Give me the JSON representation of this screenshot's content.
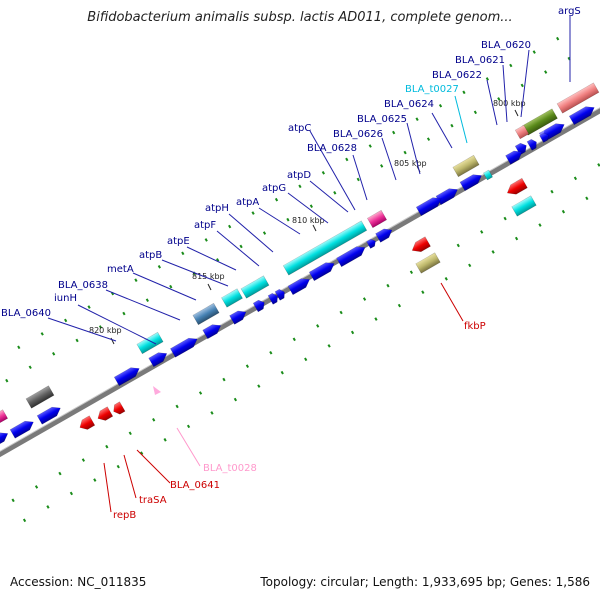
{
  "title": "Bifidobacterium animalis subsp. lactis AD011, complete genom...",
  "footer": {
    "accession": "Accession: NC_011835",
    "summary": "Topology: circular; Length: 1,933,695 bp; Genes: 1,586"
  },
  "colors": {
    "backbone": "#808080",
    "cds": "#0000ee",
    "atp": "#00e5e5",
    "trna": "#ff66cc",
    "red": "#ee0000",
    "olive": "#bdb76b",
    "green": "#1a8c1a",
    "label_blue": "#00008b",
    "label_red": "#cc0000",
    "label_cyan": "#00bbdd",
    "label_pink": "#ff99cc"
  },
  "ticks": [
    "800 kbp",
    "805 kbp",
    "810 kbp",
    "815 kbp",
    "820 kbp"
  ],
  "labels": {
    "argS": "argS",
    "bla0620": "BLA_0620",
    "bla0621": "BLA_0621",
    "bla0622": "BLA_0622",
    "blat0027": "BLA_t0027",
    "bla0624": "BLA_0624",
    "bla0625": "BLA_0625",
    "bla0626": "BLA_0626",
    "atpC": "atpC",
    "bla0628": "BLA_0628",
    "atpD": "atpD",
    "atpG": "atpG",
    "atpA": "atpA",
    "atpH": "atpH",
    "atpF": "atpF",
    "atpE": "atpE",
    "atpB": "atpB",
    "metA": "metA",
    "bla0638": "BLA_0638",
    "iunH": "iunH",
    "bla0640": "BLA_0640",
    "fkbP": "fkbP",
    "blat0028": "BLA_t0028",
    "bla0641": "BLA_0641",
    "traSA": "traSA",
    "repB": "repB"
  }
}
